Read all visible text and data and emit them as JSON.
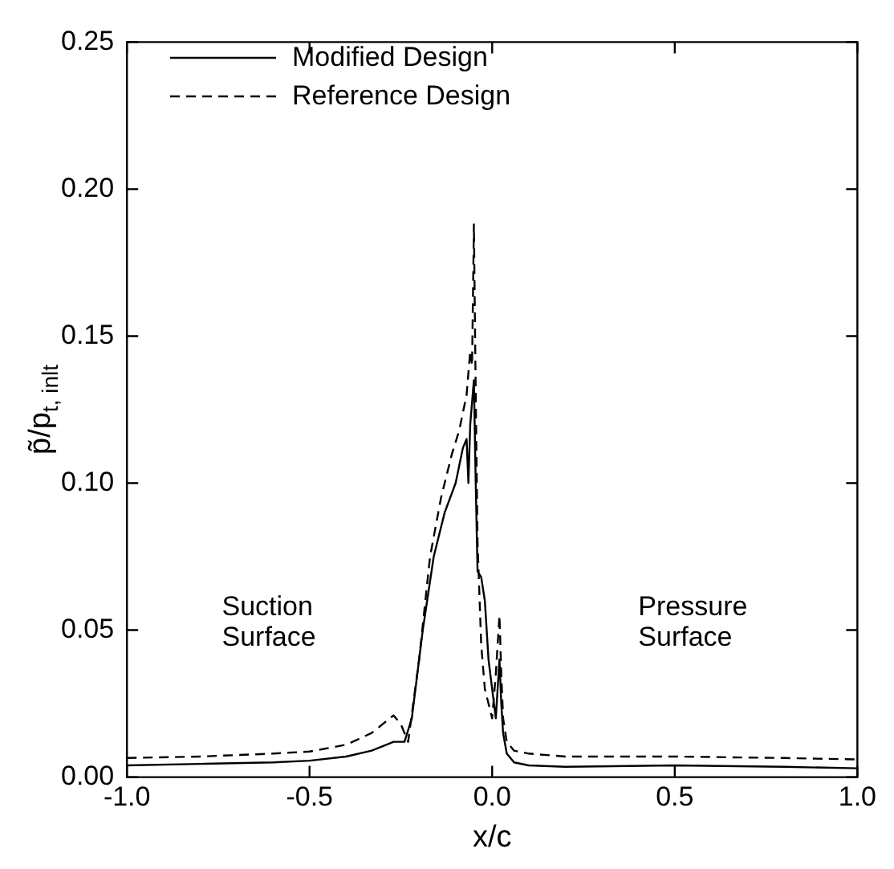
{
  "chart_data": {
    "type": "line",
    "xlabel": "x/c",
    "ylabel": "p̃/p$_{t, inlt}$",
    "xlim": [
      -1,
      1
    ],
    "xticks": [
      {
        "value": -1,
        "label": "-1.0"
      },
      {
        "value": -0.5,
        "label": "-0.5"
      },
      {
        "value": 0,
        "label": "0.0"
      },
      {
        "value": 0.5,
        "label": "0.5"
      },
      {
        "value": 1,
        "label": "1.0"
      }
    ],
    "ylim": [
      0,
      0.25
    ],
    "yticks": [
      {
        "value": 0,
        "label": "0.00"
      },
      {
        "value": 0.05,
        "label": "0.05"
      },
      {
        "value": 0.1,
        "label": "0.10"
      },
      {
        "value": 0.15,
        "label": "0.15"
      },
      {
        "value": 0.2,
        "label": "0.20"
      },
      {
        "value": 0.25,
        "label": "0.25"
      }
    ],
    "grid": false,
    "legend": "top left",
    "marker": "none",
    "annotations": [
      "Suction\nSurface",
      "Pressure\nSurface"
    ],
    "series": [
      {
        "name": "Modified Design",
        "color": "#000000",
        "line_style": "solid",
        "x": [
          -1,
          -0.8,
          -0.6,
          -0.5,
          -0.4,
          -0.33,
          -0.29,
          -0.27,
          -0.24,
          -0.22,
          -0.19,
          -0.16,
          -0.13,
          -0.1,
          -0.08,
          -0.07,
          -0.065,
          -0.06,
          -0.05,
          -0.045,
          -0.04,
          -0.03,
          -0.02,
          -0.01,
          0,
          0.01,
          0.02,
          0.025,
          0.03,
          0.04,
          0.06,
          0.1,
          0.2,
          0.5,
          0.8,
          1
        ],
        "values": [
          0.004,
          0.0045,
          0.005,
          0.0056,
          0.007,
          0.009,
          0.011,
          0.012,
          0.012,
          0.02,
          0.05,
          0.075,
          0.09,
          0.1,
          0.112,
          0.115,
          0.1,
          0.12,
          0.135,
          0.1,
          0.07,
          0.068,
          0.06,
          0.04,
          0.03,
          0.02,
          0.04,
          0.025,
          0.015,
          0.008,
          0.005,
          0.004,
          0.0035,
          0.004,
          0.0035,
          0.003
        ]
      },
      {
        "name": "Reference Design",
        "color": "#000000",
        "line_style": "dashed",
        "x": [
          -1,
          -0.8,
          -0.6,
          -0.5,
          -0.4,
          -0.33,
          -0.29,
          -0.27,
          -0.25,
          -0.23,
          -0.2,
          -0.17,
          -0.14,
          -0.11,
          -0.09,
          -0.07,
          -0.06,
          -0.055,
          -0.05,
          -0.045,
          -0.04,
          -0.03,
          -0.02,
          -0.01,
          0,
          0.01,
          0.02,
          0.025,
          0.03,
          0.04,
          0.06,
          0.1,
          0.2,
          0.5,
          0.8,
          1
        ],
        "values": [
          0.0065,
          0.007,
          0.008,
          0.0087,
          0.011,
          0.015,
          0.019,
          0.021,
          0.018,
          0.012,
          0.04,
          0.075,
          0.095,
          0.11,
          0.118,
          0.13,
          0.145,
          0.14,
          0.188,
          0.13,
          0.08,
          0.045,
          0.03,
          0.025,
          0.02,
          0.035,
          0.055,
          0.035,
          0.02,
          0.012,
          0.009,
          0.008,
          0.007,
          0.007,
          0.0065,
          0.006
        ]
      }
    ]
  }
}
